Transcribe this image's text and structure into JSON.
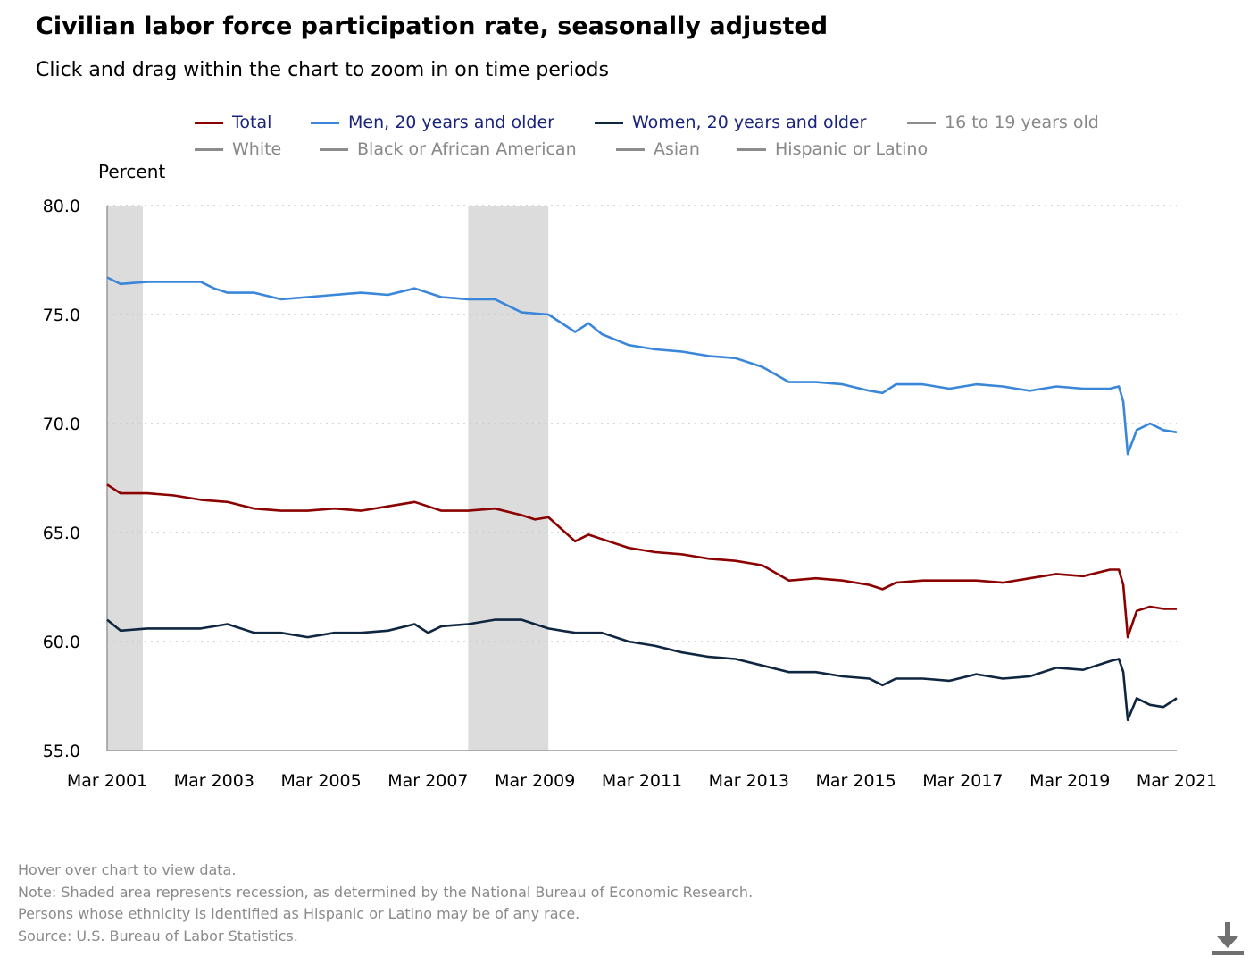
{
  "title": "Civilian labor force participation rate, seasonally adjusted",
  "subtitle": "Click and drag within the chart to zoom in on time periods",
  "notes": [
    "Hover over chart to view data.",
    "Note: Shaded area represents recession, as determined by the National Bureau of Economic Research.",
    "Persons whose ethnicity is identified as Hispanic or Latino may be of any race.",
    "Source: U.S. Bureau of Labor Statistics."
  ],
  "download_icon": "download-icon",
  "colors": {
    "total": "#8b0000",
    "men": "#3a86d8",
    "women": "#0f2640",
    "inactive": "#8c8c8c",
    "recession": "#dcdcdc",
    "grid": "#c8c8c8",
    "axis": "#999999"
  },
  "legend": [
    {
      "label": "Total",
      "color": "#8b0000",
      "active": true
    },
    {
      "label": "Men, 20 years and older",
      "color": "#3a86d8",
      "active": true
    },
    {
      "label": "Women, 20 years and older",
      "color": "#0f2640",
      "active": true
    },
    {
      "label": "16 to 19 years old",
      "color": "#8c8c8c",
      "active": false
    },
    {
      "label": "White",
      "color": "#8c8c8c",
      "active": false
    },
    {
      "label": "Black or African American",
      "color": "#8c8c8c",
      "active": false
    },
    {
      "label": "Asian",
      "color": "#8c8c8c",
      "active": false
    },
    {
      "label": "Hispanic or Latino",
      "color": "#8c8c8c",
      "active": false
    }
  ],
  "chart_data": {
    "type": "line",
    "ylabel": "Percent",
    "ylim": [
      55,
      80
    ],
    "yticks": [
      "55.0",
      "60.0",
      "65.0",
      "70.0",
      "75.0",
      "80.0"
    ],
    "xlim": [
      "2001-03",
      "2021-03"
    ],
    "xticks": [
      "Mar 2001",
      "Mar 2003",
      "Mar 2005",
      "Mar 2007",
      "Mar 2009",
      "Mar 2011",
      "Mar 2013",
      "Mar 2015",
      "Mar 2017",
      "Mar 2019",
      "Mar 2021"
    ],
    "grid": "horizontal dotted",
    "recessions": [
      [
        "2001-03",
        "2001-11"
      ],
      [
        "2007-12",
        "2009-06"
      ]
    ],
    "series": [
      {
        "name": "Total",
        "color": "#8b0000",
        "points": [
          [
            "2001-03",
            67.2
          ],
          [
            "2001-06",
            66.8
          ],
          [
            "2001-12",
            66.8
          ],
          [
            "2002-06",
            66.7
          ],
          [
            "2002-12",
            66.5
          ],
          [
            "2003-06",
            66.4
          ],
          [
            "2003-12",
            66.1
          ],
          [
            "2004-06",
            66.0
          ],
          [
            "2004-12",
            66.0
          ],
          [
            "2005-06",
            66.1
          ],
          [
            "2005-12",
            66.0
          ],
          [
            "2006-06",
            66.2
          ],
          [
            "2006-12",
            66.4
          ],
          [
            "2007-03",
            66.2
          ],
          [
            "2007-06",
            66.0
          ],
          [
            "2007-12",
            66.0
          ],
          [
            "2008-06",
            66.1
          ],
          [
            "2008-12",
            65.8
          ],
          [
            "2009-03",
            65.6
          ],
          [
            "2009-06",
            65.7
          ],
          [
            "2009-12",
            64.6
          ],
          [
            "2010-03",
            64.9
          ],
          [
            "2010-06",
            64.7
          ],
          [
            "2010-12",
            64.3
          ],
          [
            "2011-06",
            64.1
          ],
          [
            "2011-12",
            64.0
          ],
          [
            "2012-06",
            63.8
          ],
          [
            "2012-12",
            63.7
          ],
          [
            "2013-06",
            63.5
          ],
          [
            "2013-12",
            62.8
          ],
          [
            "2014-06",
            62.9
          ],
          [
            "2014-12",
            62.8
          ],
          [
            "2015-06",
            62.6
          ],
          [
            "2015-09",
            62.4
          ],
          [
            "2015-12",
            62.7
          ],
          [
            "2016-06",
            62.8
          ],
          [
            "2016-12",
            62.8
          ],
          [
            "2017-06",
            62.8
          ],
          [
            "2017-12",
            62.7
          ],
          [
            "2018-06",
            62.9
          ],
          [
            "2018-12",
            63.1
          ],
          [
            "2019-06",
            63.0
          ],
          [
            "2019-12",
            63.3
          ],
          [
            "2020-02",
            63.3
          ],
          [
            "2020-03",
            62.6
          ],
          [
            "2020-04",
            60.2
          ],
          [
            "2020-06",
            61.4
          ],
          [
            "2020-09",
            61.6
          ],
          [
            "2020-12",
            61.5
          ],
          [
            "2021-03",
            61.5
          ]
        ]
      },
      {
        "name": "Men, 20 years and older",
        "color": "#3a86d8",
        "points": [
          [
            "2001-03",
            76.7
          ],
          [
            "2001-06",
            76.4
          ],
          [
            "2001-12",
            76.5
          ],
          [
            "2002-06",
            76.5
          ],
          [
            "2002-12",
            76.5
          ],
          [
            "2003-03",
            76.2
          ],
          [
            "2003-06",
            76.0
          ],
          [
            "2003-12",
            76.0
          ],
          [
            "2004-06",
            75.7
          ],
          [
            "2004-12",
            75.8
          ],
          [
            "2005-06",
            75.9
          ],
          [
            "2005-12",
            76.0
          ],
          [
            "2006-06",
            75.9
          ],
          [
            "2006-12",
            76.2
          ],
          [
            "2007-06",
            75.8
          ],
          [
            "2007-12",
            75.7
          ],
          [
            "2008-06",
            75.7
          ],
          [
            "2008-12",
            75.1
          ],
          [
            "2009-06",
            75.0
          ],
          [
            "2009-12",
            74.2
          ],
          [
            "2010-03",
            74.6
          ],
          [
            "2010-06",
            74.1
          ],
          [
            "2010-12",
            73.6
          ],
          [
            "2011-06",
            73.4
          ],
          [
            "2011-12",
            73.3
          ],
          [
            "2012-06",
            73.1
          ],
          [
            "2012-12",
            73.0
          ],
          [
            "2013-06",
            72.6
          ],
          [
            "2013-12",
            71.9
          ],
          [
            "2014-06",
            71.9
          ],
          [
            "2014-12",
            71.8
          ],
          [
            "2015-06",
            71.5
          ],
          [
            "2015-09",
            71.4
          ],
          [
            "2015-12",
            71.8
          ],
          [
            "2016-06",
            71.8
          ],
          [
            "2016-12",
            71.6
          ],
          [
            "2017-06",
            71.8
          ],
          [
            "2017-12",
            71.7
          ],
          [
            "2018-06",
            71.5
          ],
          [
            "2018-12",
            71.7
          ],
          [
            "2019-06",
            71.6
          ],
          [
            "2019-12",
            71.6
          ],
          [
            "2020-02",
            71.7
          ],
          [
            "2020-03",
            71.0
          ],
          [
            "2020-04",
            68.6
          ],
          [
            "2020-06",
            69.7
          ],
          [
            "2020-09",
            70.0
          ],
          [
            "2020-12",
            69.7
          ],
          [
            "2021-03",
            69.6
          ]
        ]
      },
      {
        "name": "Women, 20 years and older",
        "color": "#0f2640",
        "points": [
          [
            "2001-03",
            61.0
          ],
          [
            "2001-06",
            60.5
          ],
          [
            "2001-12",
            60.6
          ],
          [
            "2002-06",
            60.6
          ],
          [
            "2002-12",
            60.6
          ],
          [
            "2003-06",
            60.8
          ],
          [
            "2003-12",
            60.4
          ],
          [
            "2004-06",
            60.4
          ],
          [
            "2004-12",
            60.2
          ],
          [
            "2005-06",
            60.4
          ],
          [
            "2005-12",
            60.4
          ],
          [
            "2006-06",
            60.5
          ],
          [
            "2006-12",
            60.8
          ],
          [
            "2007-03",
            60.4
          ],
          [
            "2007-06",
            60.7
          ],
          [
            "2007-12",
            60.8
          ],
          [
            "2008-06",
            61.0
          ],
          [
            "2008-12",
            61.0
          ],
          [
            "2009-06",
            60.6
          ],
          [
            "2009-12",
            60.4
          ],
          [
            "2010-06",
            60.4
          ],
          [
            "2010-12",
            60.0
          ],
          [
            "2011-06",
            59.8
          ],
          [
            "2011-12",
            59.5
          ],
          [
            "2012-06",
            59.3
          ],
          [
            "2012-12",
            59.2
          ],
          [
            "2013-06",
            58.9
          ],
          [
            "2013-12",
            58.6
          ],
          [
            "2014-06",
            58.6
          ],
          [
            "2014-12",
            58.4
          ],
          [
            "2015-06",
            58.3
          ],
          [
            "2015-09",
            58.0
          ],
          [
            "2015-12",
            58.3
          ],
          [
            "2016-06",
            58.3
          ],
          [
            "2016-12",
            58.2
          ],
          [
            "2017-06",
            58.5
          ],
          [
            "2017-12",
            58.3
          ],
          [
            "2018-06",
            58.4
          ],
          [
            "2018-12",
            58.8
          ],
          [
            "2019-06",
            58.7
          ],
          [
            "2019-12",
            59.1
          ],
          [
            "2020-02",
            59.2
          ],
          [
            "2020-03",
            58.6
          ],
          [
            "2020-04",
            56.4
          ],
          [
            "2020-06",
            57.4
          ],
          [
            "2020-09",
            57.1
          ],
          [
            "2020-12",
            57.0
          ],
          [
            "2021-03",
            57.4
          ]
        ]
      }
    ]
  }
}
